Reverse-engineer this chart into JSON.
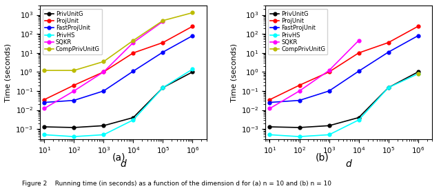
{
  "d_values": [
    10,
    100,
    1000,
    10000,
    100000,
    1000000
  ],
  "subplot_a": {
    "PrivUnitG": [
      0.0013,
      0.0012,
      0.0015,
      0.004,
      0.15,
      1.0
    ],
    "ProjUnit": [
      0.035,
      0.2,
      1.0,
      10.0,
      35.0,
      250.0
    ],
    "FastProjUnit": [
      0.025,
      0.032,
      0.1,
      1.1,
      11.0,
      80.0
    ],
    "PrivHS": [
      0.0005,
      0.0004,
      0.0005,
      0.003,
      0.15,
      1.4
    ],
    "SQKR": [
      0.012,
      0.1,
      1.0,
      35.0,
      450.0,
      null
    ],
    "CompPrivUnitG": [
      1.2,
      1.2,
      3.5,
      45.0,
      500.0,
      1300.0
    ]
  },
  "subplot_b": {
    "PrivUnitG": [
      0.0013,
      0.0012,
      0.0015,
      0.004,
      0.15,
      1.0
    ],
    "ProjUnit": [
      0.035,
      0.2,
      1.0,
      10.0,
      35.0,
      250.0
    ],
    "FastProjUnit": [
      0.025,
      0.032,
      0.1,
      1.1,
      11.0,
      80.0
    ],
    "PrivHS": [
      0.0005,
      0.0004,
      0.0005,
      0.003,
      0.15,
      0.8
    ],
    "SQKR": [
      0.012,
      0.1,
      1.2,
      45.0,
      null,
      null
    ],
    "CompPrivUnitG": [
      null,
      null,
      null,
      null,
      null,
      0.8
    ]
  },
  "colors": {
    "PrivUnitG": "black",
    "ProjUnit": "red",
    "FastProjUnit": "blue",
    "PrivHS": "cyan",
    "SQKR": "magenta",
    "CompPrivUnitG": "#bbbb00"
  },
  "labels": [
    "PrivUnitG",
    "ProjUnit",
    "FastProjUnit",
    "PrivHS",
    "SQKR",
    "CompPrivUnitG"
  ],
  "ylabel": "Time (seconds)",
  "xlabel": "d",
  "ylim": [
    0.0003,
    3000.0
  ],
  "subplot_labels": [
    "(a)",
    "(b)"
  ],
  "caption": "Figure 2    Running time (in seconds) as a function of the dimension d for (a) n = 10 and (b) n = 10",
  "figsize": [
    6.4,
    2.8
  ],
  "dpi": 100
}
